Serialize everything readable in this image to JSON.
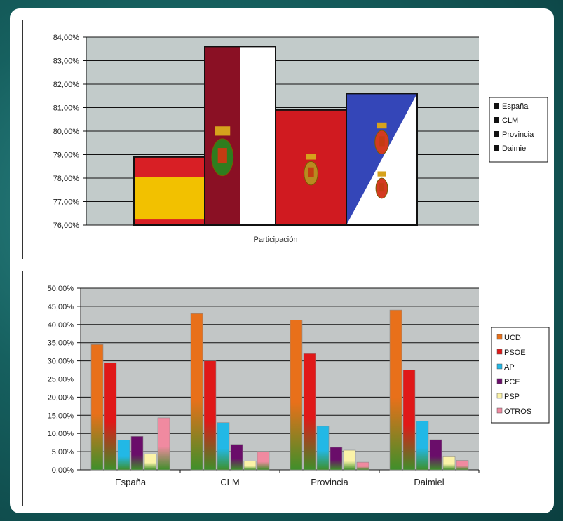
{
  "chart_data": [
    {
      "type": "bar",
      "xlabel": "Participación",
      "ylim": [
        76,
        84
      ],
      "yticks": [
        "84,00%",
        "83,00%",
        "82,00%",
        "81,00%",
        "80,00%",
        "79,00%",
        "78,00%",
        "77,00%",
        "76,00%"
      ],
      "categories": [
        "Participación"
      ],
      "series": [
        {
          "name": "España",
          "values": [
            78.9
          ]
        },
        {
          "name": "CLM",
          "values": [
            83.6
          ]
        },
        {
          "name": "Provincia",
          "values": [
            80.9
          ]
        },
        {
          "name": "Daimiel",
          "values": [
            81.6
          ]
        }
      ],
      "legend": [
        "España",
        "CLM",
        "Provincia",
        "Daimiel"
      ],
      "legend_position": "right",
      "grid": true
    },
    {
      "type": "bar",
      "ylim": [
        0,
        50
      ],
      "yticks": [
        "50,00%",
        "45,00%",
        "40,00%",
        "35,00%",
        "30,00%",
        "25,00%",
        "20,00%",
        "15,00%",
        "10,00%",
        "5,00%",
        "0,00%"
      ],
      "categories": [
        "España",
        "CLM",
        "Provincia",
        "Daimiel"
      ],
      "series": [
        {
          "name": "UCD",
          "values": [
            34.5,
            43.0,
            41.2,
            44.0
          ],
          "color": "#e8701a"
        },
        {
          "name": "PSOE",
          "values": [
            29.5,
            30.0,
            32.0,
            27.5
          ],
          "color": "#e01818"
        },
        {
          "name": "AP",
          "values": [
            8.2,
            13.0,
            12.0,
            13.4
          ],
          "color": "#22b8e6"
        },
        {
          "name": "PCE",
          "values": [
            9.2,
            7.0,
            6.2,
            8.3
          ],
          "color": "#6a0d6a"
        },
        {
          "name": "PSP",
          "values": [
            4.4,
            2.4,
            5.4,
            3.6
          ],
          "color": "#fbf3a8"
        },
        {
          "name": "OTROS",
          "values": [
            14.3,
            5.0,
            2.1,
            2.6
          ],
          "color": "#f08aa0"
        }
      ],
      "legend": [
        "UCD",
        "PSOE",
        "AP",
        "PCE",
        "PSP",
        "OTROS"
      ],
      "legend_position": "right",
      "grid": true
    }
  ]
}
